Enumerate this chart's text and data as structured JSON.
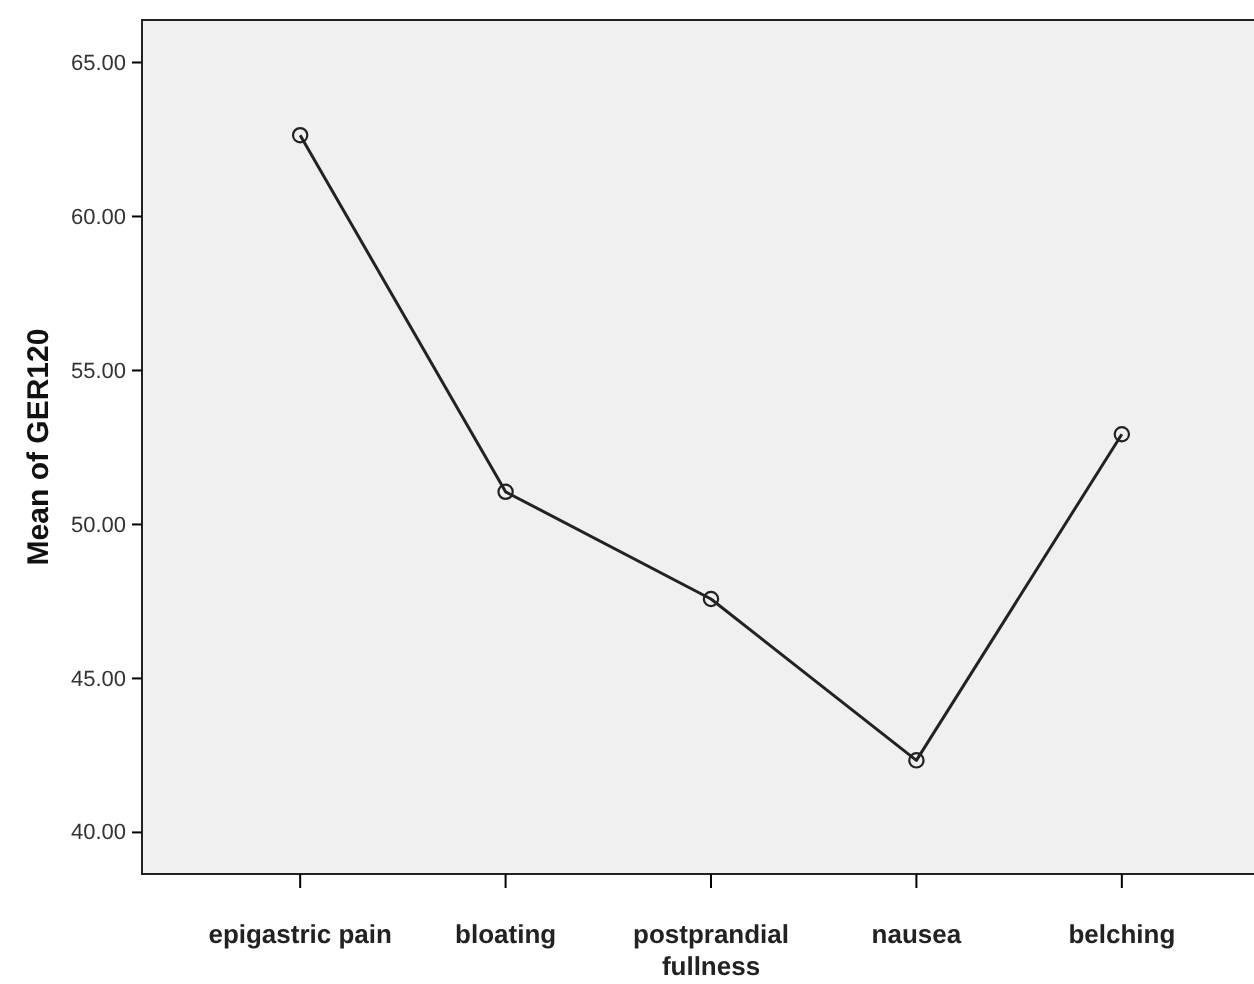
{
  "chart_data": {
    "type": "line",
    "ylabel": "Mean of GER120",
    "categories": [
      "epigastric pain",
      "bloating",
      "postprandial fullness",
      "nausea",
      "belching"
    ],
    "series": [
      {
        "color": "#222222",
        "values": [
          62.64,
          51.06,
          47.58,
          42.34,
          52.93
        ]
      }
    ],
    "ylim": [
      38.65,
      66.38
    ],
    "yticks": [
      {
        "value": 40,
        "label": "40.00"
      },
      {
        "value": 45,
        "label": "45.00"
      },
      {
        "value": 50,
        "label": "50.00"
      },
      {
        "value": 55,
        "label": "55.00"
      },
      {
        "value": 60,
        "label": "60.00"
      },
      {
        "value": 65,
        "label": "65.00"
      }
    ],
    "marker": "circle",
    "line_style": "solid",
    "grid": false
  }
}
